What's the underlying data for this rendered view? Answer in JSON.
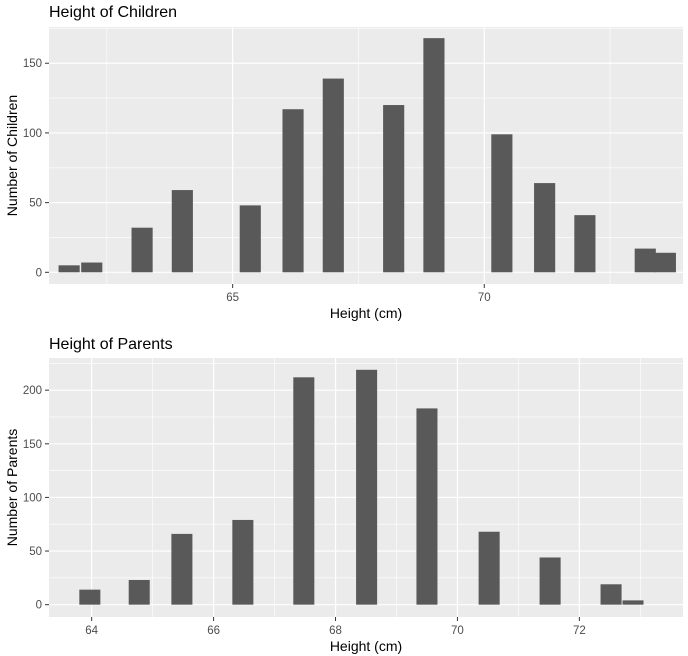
{
  "chart_data": [
    {
      "type": "bar",
      "title": "Height of Children",
      "xlabel": "Height (cm)",
      "ylabel": "Number of Children",
      "bar_color": "#595959",
      "panel_color": "#ebebeb",
      "grid": true,
      "xlim": [
        61.35,
        73.95
      ],
      "ylim": [
        -8.4,
        176
      ],
      "x_ticks": [
        65,
        70
      ],
      "x_tick_labels": [
        "65",
        "70"
      ],
      "y_ticks": [
        0,
        50,
        100,
        150
      ],
      "y_tick_labels": [
        "0",
        "50",
        "100",
        "150"
      ],
      "bin_width": 0.42,
      "x": [
        61.75,
        62.2,
        63.2,
        64.0,
        65.35,
        66.2,
        67.0,
        68.2,
        69.0,
        70.35,
        71.2,
        72.0,
        73.2,
        73.6
      ],
      "values": [
        5,
        7,
        32,
        59,
        48,
        117,
        139,
        120,
        168,
        99,
        64,
        41,
        17,
        14
      ]
    },
    {
      "type": "bar",
      "title": "Height of Parents",
      "xlabel": "Height (cm)",
      "ylabel": "Number of Parents",
      "bar_color": "#595959",
      "panel_color": "#ebebeb",
      "grid": true,
      "xlim": [
        63.3,
        73.7
      ],
      "ylim": [
        -11.5,
        230
      ],
      "x_ticks": [
        64,
        66,
        68,
        70,
        72
      ],
      "x_tick_labels": [
        "64",
        "66",
        "68",
        "70",
        "72"
      ],
      "y_ticks": [
        0,
        50,
        100,
        150,
        200
      ],
      "y_tick_labels": [
        "0",
        "50",
        "100",
        "150",
        "200"
      ],
      "bin_width": 0.345,
      "x": [
        63.97,
        64.78,
        65.48,
        66.48,
        67.48,
        68.51,
        69.5,
        70.52,
        71.52,
        72.52,
        72.88
      ],
      "values": [
        14,
        23,
        66,
        79,
        212,
        219,
        183,
        68,
        44,
        19,
        4
      ]
    }
  ]
}
